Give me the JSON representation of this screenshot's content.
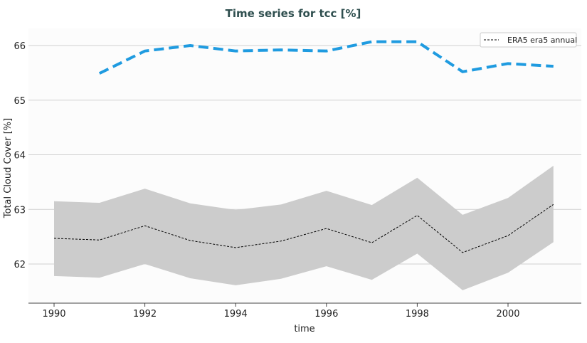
{
  "chart_data": {
    "type": "line",
    "title": "Time series for tcc [%]",
    "xlabel": "time",
    "ylabel": "Total Cloud Cover [%]",
    "xlim": [
      1989.45,
      2001.6
    ],
    "ylim": [
      61.3,
      66.31
    ],
    "x_ticks": [
      1990,
      1992,
      1994,
      1996,
      1998,
      2000
    ],
    "y_ticks": [
      62,
      63,
      64,
      65,
      66
    ],
    "grid": "horizontal",
    "legend_position": "top-right",
    "series": [
      {
        "name": "ERA5 era5 annual",
        "style": "dashed",
        "color": "#000000",
        "x": [
          1990,
          1991,
          1992,
          1993,
          1994,
          1995,
          1996,
          1997,
          1998,
          1999,
          2000,
          2001
        ],
        "values": [
          62.47,
          62.44,
          62.7,
          62.43,
          62.3,
          62.42,
          62.65,
          62.39,
          62.89,
          62.21,
          62.52,
          63.09
        ],
        "band_upper": [
          63.15,
          63.12,
          63.38,
          63.11,
          62.99,
          63.09,
          63.34,
          63.08,
          63.58,
          62.9,
          63.21,
          63.8
        ],
        "band_lower": [
          61.78,
          61.75,
          62.0,
          61.74,
          61.61,
          61.73,
          61.96,
          61.71,
          62.19,
          61.52,
          61.84,
          62.4
        ],
        "band_color": "#cccccc"
      },
      {
        "style": "dashed",
        "color": "#1f9be0",
        "x": [
          1991,
          1992,
          1993,
          1994,
          1995,
          1996,
          1997,
          1998,
          1999,
          2000,
          2001
        ],
        "values": [
          65.49,
          65.9,
          66.0,
          65.9,
          65.92,
          65.9,
          66.07,
          66.07,
          65.52,
          65.67,
          65.62
        ]
      }
    ]
  }
}
